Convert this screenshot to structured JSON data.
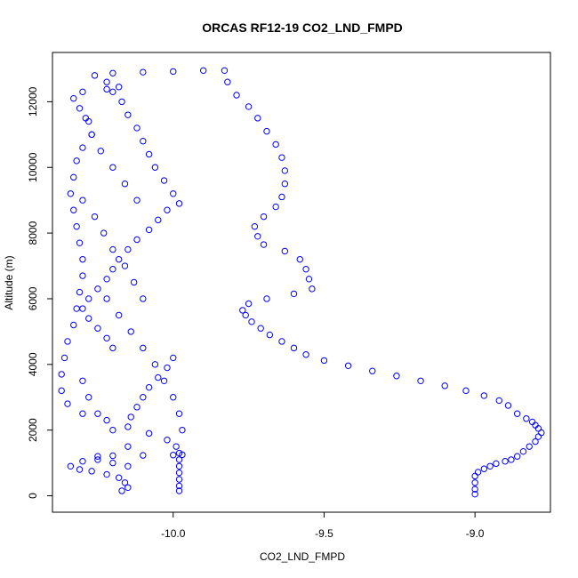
{
  "chart_data": {
    "type": "scatter",
    "title": "ORCAS RF12-19 CO2_LND_FMPD",
    "xlabel": "CO2_LND_FMPD",
    "ylabel": "Altitude (m)",
    "xlim": [
      -10.4,
      -8.75
    ],
    "ylim": [
      -500,
      13500
    ],
    "x_ticks": [
      -10.0,
      -9.5,
      -9.0
    ],
    "x_tick_labels": [
      "-10.0",
      "-9.5",
      "-9.0"
    ],
    "y_ticks": [
      0,
      2000,
      4000,
      6000,
      8000,
      10000,
      12000
    ],
    "y_tick_labels": [
      "0",
      "2000",
      "4000",
      "6000",
      "8000",
      "10000",
      "12000"
    ],
    "grid": false,
    "marker": "open-circle",
    "series": [
      {
        "color": "#0000FF",
        "points": [
          [
            -9.0,
            50
          ],
          [
            -9.0,
            200
          ],
          [
            -9.0,
            400
          ],
          [
            -9.0,
            600
          ],
          [
            -8.99,
            720
          ],
          [
            -8.97,
            820
          ],
          [
            -8.95,
            900
          ],
          [
            -8.93,
            980
          ],
          [
            -8.9,
            1050
          ],
          [
            -8.88,
            1100
          ],
          [
            -8.86,
            1200
          ],
          [
            -8.84,
            1350
          ],
          [
            -8.82,
            1500
          ],
          [
            -8.8,
            1650
          ],
          [
            -8.79,
            1800
          ],
          [
            -8.78,
            1920
          ],
          [
            -8.79,
            2050
          ],
          [
            -8.8,
            2150
          ],
          [
            -8.81,
            2250
          ],
          [
            -8.83,
            2350
          ],
          [
            -8.86,
            2500
          ],
          [
            -8.89,
            2750
          ],
          [
            -8.92,
            2900
          ],
          [
            -8.97,
            3050
          ],
          [
            -9.03,
            3200
          ],
          [
            -9.1,
            3350
          ],
          [
            -9.18,
            3500
          ],
          [
            -9.26,
            3650
          ],
          [
            -9.34,
            3800
          ],
          [
            -9.42,
            3960
          ],
          [
            -9.5,
            4120
          ],
          [
            -9.56,
            4300
          ],
          [
            -9.6,
            4500
          ],
          [
            -9.64,
            4700
          ],
          [
            -9.68,
            4900
          ],
          [
            -9.71,
            5100
          ],
          [
            -9.74,
            5300
          ],
          [
            -9.76,
            5500
          ],
          [
            -9.77,
            5650
          ],
          [
            -9.75,
            5850
          ],
          [
            -9.69,
            6000
          ],
          [
            -9.6,
            6150
          ],
          [
            -9.54,
            6300
          ],
          [
            -9.55,
            6600
          ],
          [
            -9.56,
            6900
          ],
          [
            -9.58,
            7200
          ],
          [
            -9.63,
            7450
          ],
          [
            -9.7,
            7650
          ],
          [
            -9.72,
            7900
          ],
          [
            -9.73,
            8200
          ],
          [
            -9.7,
            8500
          ],
          [
            -9.66,
            8800
          ],
          [
            -9.64,
            9100
          ],
          [
            -9.63,
            9500
          ],
          [
            -9.63,
            9900
          ],
          [
            -9.64,
            10300
          ],
          [
            -9.66,
            10700
          ],
          [
            -9.69,
            11100
          ],
          [
            -9.72,
            11500
          ],
          [
            -9.75,
            11850
          ],
          [
            -9.79,
            12200
          ],
          [
            -9.82,
            12600
          ],
          [
            -9.83,
            12950
          ],
          [
            -9.9,
            12950
          ],
          [
            -10.0,
            12920
          ],
          [
            -10.1,
            12900
          ],
          [
            -10.2,
            12870
          ],
          [
            -10.26,
            12800
          ],
          [
            -10.22,
            12600
          ],
          [
            -10.18,
            12450
          ],
          [
            -10.22,
            12380
          ],
          [
            -10.3,
            12300
          ],
          [
            -10.33,
            12100
          ],
          [
            -10.31,
            11800
          ],
          [
            -10.28,
            11400
          ],
          [
            -10.27,
            11000
          ],
          [
            -10.3,
            10600
          ],
          [
            -10.32,
            10200
          ],
          [
            -10.33,
            9700
          ],
          [
            -10.34,
            9200
          ],
          [
            -10.33,
            8700
          ],
          [
            -10.32,
            8200
          ],
          [
            -10.31,
            7700
          ],
          [
            -10.3,
            7200
          ],
          [
            -10.3,
            6700
          ],
          [
            -10.31,
            6200
          ],
          [
            -10.32,
            5700
          ],
          [
            -10.33,
            5200
          ],
          [
            -10.35,
            4700
          ],
          [
            -10.36,
            4200
          ],
          [
            -10.37,
            3700
          ],
          [
            -10.37,
            3200
          ],
          [
            -10.35,
            2800
          ],
          [
            -10.3,
            2500
          ],
          [
            -10.22,
            2300
          ],
          [
            -10.15,
            2100
          ],
          [
            -10.08,
            1900
          ],
          [
            -10.02,
            1700
          ],
          [
            -9.99,
            1500
          ],
          [
            -9.98,
            1300
          ],
          [
            -9.98,
            1100
          ],
          [
            -9.98,
            900
          ],
          [
            -9.98,
            700
          ],
          [
            -9.98,
            500
          ],
          [
            -9.98,
            300
          ],
          [
            -9.98,
            150
          ],
          [
            -10.15,
            900
          ],
          [
            -10.2,
            1000
          ],
          [
            -10.25,
            1100
          ],
          [
            -10.3,
            1050
          ],
          [
            -10.34,
            900
          ],
          [
            -10.31,
            800
          ],
          [
            -10.27,
            750
          ],
          [
            -10.22,
            650
          ],
          [
            -10.18,
            550
          ],
          [
            -10.16,
            400
          ],
          [
            -10.15,
            250
          ],
          [
            -10.17,
            150
          ],
          [
            -10.25,
            1200
          ],
          [
            -10.2,
            1220
          ],
          [
            -10.1,
            1230
          ],
          [
            -10.0,
            1240
          ],
          [
            -9.97,
            1250
          ],
          [
            -10.0,
            4200
          ],
          [
            -10.02,
            3900
          ],
          [
            -10.05,
            3600
          ],
          [
            -10.08,
            3300
          ],
          [
            -10.1,
            3000
          ],
          [
            -10.12,
            2700
          ],
          [
            -10.14,
            2400
          ],
          [
            -10.2,
            4500
          ],
          [
            -10.22,
            4800
          ],
          [
            -10.25,
            5100
          ],
          [
            -10.28,
            5400
          ],
          [
            -10.3,
            5700
          ],
          [
            -10.28,
            6000
          ],
          [
            -10.25,
            6300
          ],
          [
            -10.22,
            6600
          ],
          [
            -10.2,
            6900
          ],
          [
            -10.18,
            7200
          ],
          [
            -10.15,
            7500
          ],
          [
            -10.12,
            7800
          ],
          [
            -10.08,
            8100
          ],
          [
            -10.05,
            8400
          ],
          [
            -10.02,
            8700
          ],
          [
            -9.98,
            8900
          ],
          [
            -10.0,
            9200
          ],
          [
            -10.03,
            9600
          ],
          [
            -10.06,
            10000
          ],
          [
            -10.08,
            10400
          ],
          [
            -10.1,
            10800
          ],
          [
            -10.12,
            11200
          ],
          [
            -10.15,
            11600
          ],
          [
            -10.17,
            12000
          ],
          [
            -10.2,
            12300
          ],
          [
            -10.15,
            1500
          ],
          [
            -10.2,
            2000
          ],
          [
            -10.25,
            2500
          ],
          [
            -10.28,
            3000
          ],
          [
            -10.3,
            3500
          ],
          [
            -10.22,
            6000
          ],
          [
            -10.18,
            5500
          ],
          [
            -10.14,
            5000
          ],
          [
            -10.1,
            4500
          ],
          [
            -10.06,
            4000
          ],
          [
            -10.03,
            3500
          ],
          [
            -10.0,
            3000
          ],
          [
            -9.98,
            2500
          ],
          [
            -9.97,
            2000
          ],
          [
            -10.12,
            9000
          ],
          [
            -10.16,
            9500
          ],
          [
            -10.2,
            10000
          ],
          [
            -10.24,
            10500
          ],
          [
            -10.27,
            11000
          ],
          [
            -10.29,
            11500
          ],
          [
            -10.1,
            6000
          ],
          [
            -10.13,
            6500
          ],
          [
            -10.16,
            7000
          ],
          [
            -10.2,
            7500
          ],
          [
            -10.23,
            8000
          ],
          [
            -10.26,
            8500
          ],
          [
            -10.3,
            9000
          ]
        ]
      }
    ]
  }
}
